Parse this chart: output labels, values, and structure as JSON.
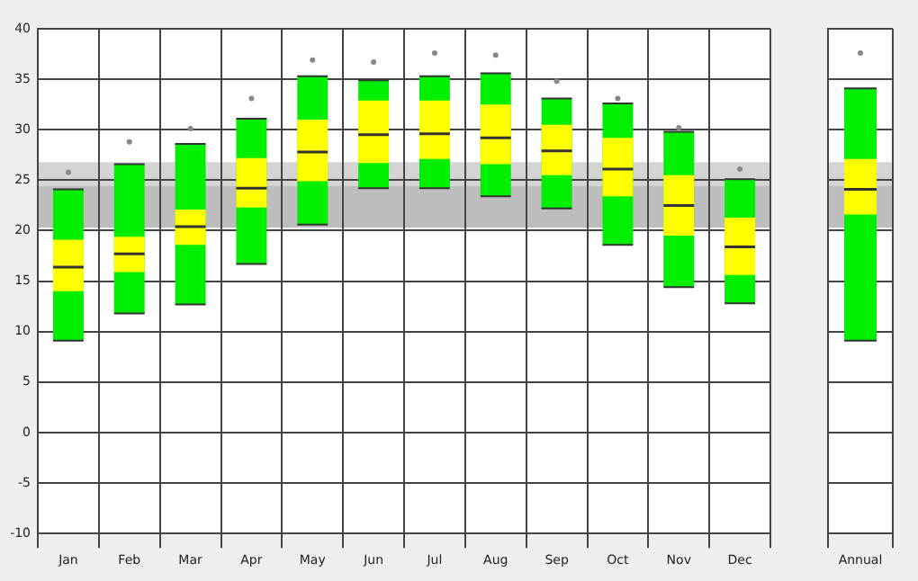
{
  "chart_data": [
    {
      "type": "box",
      "categories": [
        "Jan",
        "Feb",
        "Mar",
        "Apr",
        "May",
        "Jun",
        "Jul",
        "Aug",
        "Sep",
        "Oct",
        "Nov",
        "Dec"
      ],
      "ylim": [
        -10,
        40
      ],
      "yticks": [
        -10,
        -5,
        0,
        5,
        10,
        15,
        20,
        25,
        30,
        35,
        40
      ],
      "grid": true,
      "bands": [
        {
          "axis": "y",
          "from": 20.3,
          "to": 26.8,
          "color": "#d4d4d4"
        },
        {
          "axis": "y",
          "from": 20.3,
          "to": 24.4,
          "color": "#bdbdbd"
        }
      ],
      "series": [
        {
          "color": "#ffff00",
          "boxes": [
            {
              "low": 9.1,
              "q1": 14.0,
              "median": 16.4,
              "q3": 19.1,
              "high": 24.1,
              "outliers": [
                25.8
              ]
            },
            {
              "low": 11.8,
              "q1": 15.9,
              "median": 17.7,
              "q3": 19.4,
              "high": 26.6,
              "outliers": [
                28.8
              ]
            },
            {
              "low": 12.7,
              "q1": 18.6,
              "median": 20.4,
              "q3": 22.1,
              "high": 28.6,
              "outliers": [
                30.1
              ]
            },
            {
              "low": 16.7,
              "q1": 22.3,
              "median": 24.2,
              "q3": 27.2,
              "high": 31.1,
              "outliers": [
                33.1
              ]
            },
            {
              "low": 20.6,
              "q1": 24.9,
              "median": 27.8,
              "q3": 31.0,
              "high": 35.3,
              "outliers": [
                36.9
              ]
            },
            {
              "low": 24.2,
              "q1": 26.7,
              "median": 29.5,
              "q3": 32.9,
              "high": 34.9,
              "outliers": [
                36.7
              ]
            },
            {
              "low": 24.2,
              "q1": 27.1,
              "median": 29.6,
              "q3": 32.9,
              "high": 35.3,
              "outliers": [
                37.6
              ]
            },
            {
              "low": 23.4,
              "q1": 26.6,
              "median": 29.2,
              "q3": 32.5,
              "high": 35.6,
              "outliers": [
                37.4
              ]
            },
            {
              "low": 22.2,
              "q1": 25.5,
              "median": 27.9,
              "q3": 30.5,
              "high": 33.1,
              "outliers": [
                34.8
              ]
            },
            {
              "low": 18.6,
              "q1": 23.4,
              "median": 26.1,
              "q3": 29.2,
              "high": 32.6,
              "outliers": [
                33.1
              ]
            },
            {
              "low": 14.4,
              "q1": 19.5,
              "median": 22.5,
              "q3": 25.5,
              "high": 29.8,
              "outliers": [
                30.2
              ]
            },
            {
              "low": 12.8,
              "q1": 15.6,
              "median": 18.4,
              "q3": 21.3,
              "high": 25.1,
              "outliers": [
                26.1
              ]
            }
          ]
        }
      ]
    },
    {
      "type": "box",
      "categories": [
        "Annual"
      ],
      "ylim": [
        -10,
        40
      ],
      "yticks": [
        -10,
        -5,
        0,
        5,
        10,
        15,
        20,
        25,
        30,
        35,
        40
      ],
      "grid": true,
      "tick_labels": "x",
      "bands": [
        {
          "axis": "y",
          "from": 20.3,
          "to": 26.8,
          "color": "#d4d4d4"
        },
        {
          "axis": "y",
          "from": 20.3,
          "to": 24.4,
          "color": "#bdbdbd"
        }
      ],
      "series": [
        {
          "color": "#ffff00",
          "boxes": [
            {
              "low": 9.1,
              "q1": 21.6,
              "median": 24.1,
              "q3": 27.1,
              "high": 34.1,
              "outliers": [
                37.6
              ]
            }
          ]
        }
      ]
    }
  ]
}
